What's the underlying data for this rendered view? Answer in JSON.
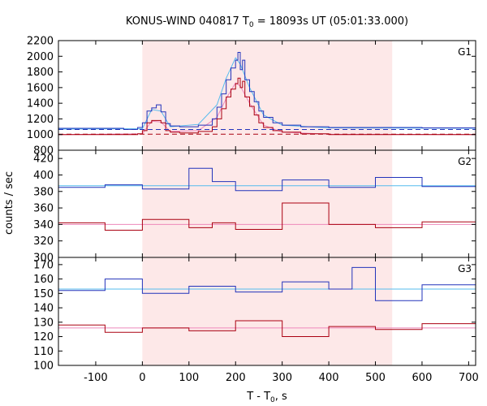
{
  "chart_data": {
    "type": "line",
    "title_main": "KONUS-WIND 040817 T",
    "title_sub": "0",
    "title_rest": " = 18093s UT (05:01:33.000)",
    "xlabel_main": "T - T",
    "xlabel_sub": "0",
    "xlabel_rest": ", s",
    "ylabel": "counts / sec",
    "xlim": [
      -180,
      715
    ],
    "xticks": [
      -100,
      0,
      100,
      200,
      300,
      400,
      500,
      600,
      700
    ],
    "highlight_interval": [
      0,
      536
    ],
    "highlight_color": "#fde8e8",
    "grid": false,
    "colors": {
      "hi_series": "#2233bb",
      "lo_series": "#aa0011",
      "hi_fit": "#55bbee",
      "lo_fit": "#ee88bb",
      "hi_background": "#2233bb",
      "lo_background": "#aa0011"
    },
    "panels": [
      {
        "label": "G1",
        "ylim": [
          800,
          2200
        ],
        "yticks": [
          800,
          1000,
          1200,
          1400,
          1600,
          1800,
          2000,
          2200
        ],
        "background_levels": [
          1065,
          1005
        ],
        "series": [
          {
            "x": [
              -180,
              -40,
              -10,
              0,
              10,
              20,
              30,
              40,
              50,
              60,
              80,
              120,
              150,
              160,
              170,
              180,
              190,
              200,
              205,
              210,
              215,
              220,
              230,
              240,
              250,
              260,
              280,
              300,
              340,
              400,
              500,
              600,
              715
            ],
            "y": [
              1080,
              1065,
              1090,
              1150,
              1300,
              1340,
              1380,
              1290,
              1140,
              1110,
              1100,
              1120,
              1200,
              1350,
              1520,
              1700,
              1850,
              1950,
              2050,
              1830,
              1950,
              1700,
              1550,
              1420,
              1300,
              1220,
              1150,
              1120,
              1100,
              1090,
              1090,
              1085,
              1080
            ]
          },
          {
            "x": [
              -180,
              -40,
              -10,
              0,
              10,
              20,
              30,
              40,
              50,
              60,
              80,
              120,
              150,
              160,
              170,
              180,
              190,
              200,
              205,
              210,
              215,
              220,
              230,
              240,
              250,
              260,
              280,
              300,
              340,
              400,
              500,
              600,
              715
            ],
            "y": [
              1000,
              1000,
              1010,
              1050,
              1150,
              1180,
              1180,
              1150,
              1050,
              1030,
              1020,
              1040,
              1100,
              1200,
              1330,
              1480,
              1580,
              1650,
              1720,
              1600,
              1680,
              1480,
              1360,
              1250,
              1150,
              1090,
              1050,
              1030,
              1010,
              1000,
              1000,
              1000,
              995
            ]
          }
        ],
        "fits": [
          {
            "x": [
              -180,
              0,
              20,
              40,
              60,
              120,
              160,
              180,
              200,
              210,
              230,
              260,
              300,
              400,
              715
            ],
            "y": [
              1070,
              1075,
              1320,
              1300,
              1100,
              1130,
              1380,
              1720,
              1980,
              1900,
              1600,
              1250,
              1120,
              1085,
              1080
            ]
          },
          {
            "x": [
              -180,
              0,
              20,
              40,
              60,
              120,
              160,
              180,
              200,
              210,
              230,
              260,
              300,
              400,
              715
            ],
            "y": [
              1000,
              1010,
              1170,
              1160,
              1040,
              1050,
              1220,
              1460,
              1660,
              1620,
              1400,
              1120,
              1030,
              1005,
              1000
            ]
          }
        ]
      },
      {
        "label": "G2",
        "ylim": [
          300,
          430
        ],
        "yticks": [
          300,
          320,
          340,
          360,
          380,
          400,
          420
        ],
        "series": [
          {
            "x": [
              -180,
              -80,
              0,
              100,
              150,
              200,
              300,
              400,
              500,
              600,
              715
            ],
            "y": [
              385,
              388,
              383,
              408,
              392,
              381,
              394,
              385,
              397,
              386,
              389
            ]
          },
          {
            "x": [
              -180,
              -80,
              0,
              100,
              150,
              200,
              300,
              400,
              500,
              600,
              715
            ],
            "y": [
              342,
              333,
              346,
              336,
              342,
              334,
              366,
              340,
              336,
              343,
              339
            ]
          }
        ],
        "fits": [
          {
            "x": [
              -180,
              715
            ],
            "y": [
              387,
              387
            ]
          },
          {
            "x": [
              -180,
              715
            ],
            "y": [
              340,
              340
            ]
          }
        ]
      },
      {
        "label": "G3",
        "ylim": [
          100,
          175
        ],
        "yticks": [
          100,
          110,
          120,
          130,
          140,
          150,
          160,
          170
        ],
        "series": [
          {
            "x": [
              -180,
              -80,
              0,
              100,
              200,
              300,
              400,
              450,
              500,
              600,
              715
            ],
            "y": [
              152,
              160,
              150,
              155,
              151,
              158,
              153,
              168,
              145,
              156,
              153
            ]
          },
          {
            "x": [
              -180,
              -80,
              0,
              100,
              200,
              300,
              400,
              500,
              600,
              715
            ],
            "y": [
              128,
              123,
              126,
              124,
              131,
              120,
              127,
              125,
              129,
              124
            ]
          }
        ],
        "fits": [
          {
            "x": [
              -180,
              715
            ],
            "y": [
              153,
              153
            ]
          },
          {
            "x": [
              -180,
              715
            ],
            "y": [
              126,
              126
            ]
          }
        ]
      }
    ]
  }
}
